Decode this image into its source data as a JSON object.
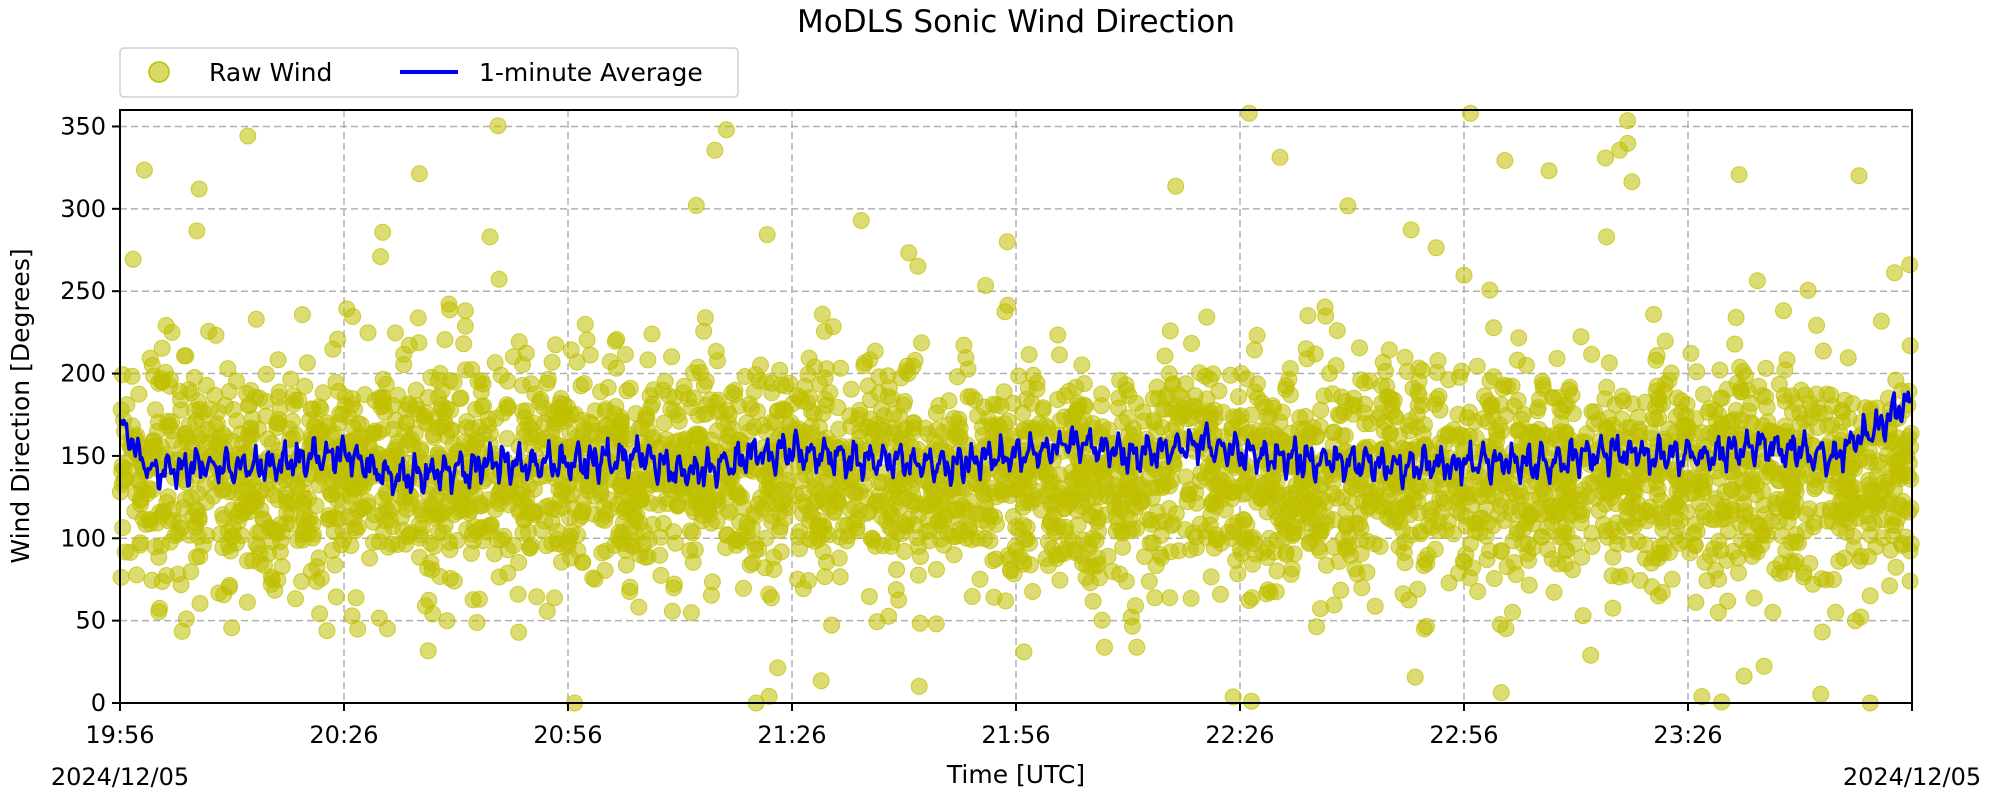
{
  "chart_data": {
    "type": "scatter",
    "title": "MoDLS Sonic Wind Direction",
    "xlabel": "Time [UTC]",
    "ylabel": "Wind Direction [Degrees]",
    "x_start_date": "2024/12/05",
    "x_end_date": "2024/12/05",
    "xlim": [
      "19:56",
      "23:56"
    ],
    "x_ticks": [
      "19:56",
      "20:26",
      "20:56",
      "21:26",
      "21:56",
      "22:26",
      "22:56",
      "23:26"
    ],
    "ylim": [
      0,
      360
    ],
    "y_ticks": [
      0,
      50,
      100,
      150,
      200,
      250,
      300,
      350
    ],
    "grid": true,
    "legend_position": "top-left, outside above plot",
    "series": [
      {
        "name": "Raw Wind",
        "kind": "scatter",
        "color": "#bfbf00",
        "description_range": [
          0,
          360
        ],
        "typical_center": 140,
        "typical_spread": [
          90,
          200
        ]
      },
      {
        "name": "1-minute Average",
        "kind": "line",
        "color": "#0000ee",
        "values_sampled": [
          {
            "t": "19:56",
            "v": 172
          },
          {
            "t": "20:00",
            "v": 140
          },
          {
            "t": "20:06",
            "v": 144
          },
          {
            "t": "20:12",
            "v": 142
          },
          {
            "t": "20:20",
            "v": 148
          },
          {
            "t": "20:26",
            "v": 152
          },
          {
            "t": "20:32",
            "v": 138
          },
          {
            "t": "20:40",
            "v": 140
          },
          {
            "t": "20:46",
            "v": 145
          },
          {
            "t": "20:56",
            "v": 146
          },
          {
            "t": "21:06",
            "v": 150
          },
          {
            "t": "21:12",
            "v": 138
          },
          {
            "t": "21:20",
            "v": 150
          },
          {
            "t": "21:26",
            "v": 152
          },
          {
            "t": "21:36",
            "v": 148
          },
          {
            "t": "21:46",
            "v": 144
          },
          {
            "t": "21:56",
            "v": 150
          },
          {
            "t": "22:04",
            "v": 158
          },
          {
            "t": "22:12",
            "v": 150
          },
          {
            "t": "22:20",
            "v": 158
          },
          {
            "t": "22:26",
            "v": 152
          },
          {
            "t": "22:36",
            "v": 148
          },
          {
            "t": "22:46",
            "v": 143
          },
          {
            "t": "22:56",
            "v": 146
          },
          {
            "t": "23:06",
            "v": 145
          },
          {
            "t": "23:16",
            "v": 152
          },
          {
            "t": "23:26",
            "v": 150
          },
          {
            "t": "23:36",
            "v": 156
          },
          {
            "t": "23:46",
            "v": 150
          },
          {
            "t": "23:56",
            "v": 184
          }
        ]
      }
    ]
  }
}
